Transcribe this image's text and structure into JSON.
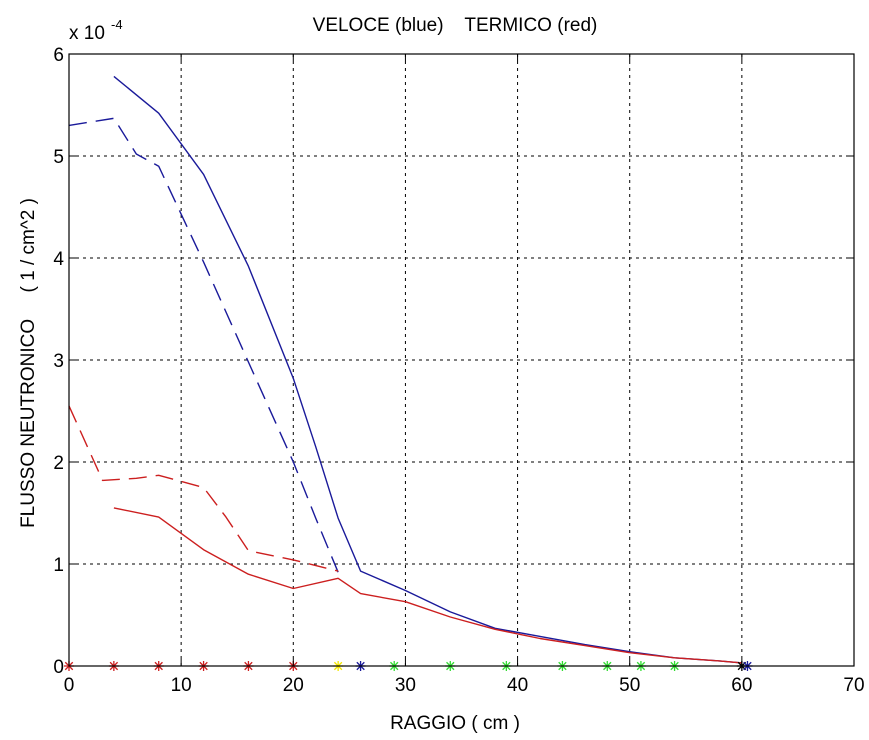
{
  "chart_data": {
    "type": "line",
    "title": "VELOCE (blue)    TERMICO (red)",
    "xlabel": "RAGGIO ( cm )",
    "ylabel": "FLUSSO NEUTRONICO     ( 1 / cm^2 )",
    "y_exponent_prefix": "x 10",
    "y_exponent_power": "-4",
    "xlim": [
      0,
      70
    ],
    "ylim": [
      0,
      6
    ],
    "x_ticks": [
      0,
      10,
      20,
      30,
      40,
      50,
      60,
      70
    ],
    "x_tick_labels": [
      "0",
      "10",
      "20",
      "30",
      "40",
      "50",
      "60",
      "70"
    ],
    "y_ticks": [
      0,
      1,
      2,
      3,
      4,
      5,
      6
    ],
    "y_tick_labels": [
      "0",
      "1",
      "2",
      "3",
      "4",
      "5",
      "6"
    ],
    "grid": true,
    "colors": {
      "blue": "#1a1a9a",
      "red": "#cc1f1f",
      "yellow": "#f2e600",
      "green": "#33dd33",
      "black": "#000000"
    },
    "series": [
      {
        "color": "blue",
        "style": "solid",
        "x": [
          4,
          8,
          12,
          16,
          20,
          22,
          24,
          26,
          30,
          34,
          38,
          42,
          46,
          50,
          54,
          58,
          60
        ],
        "y": [
          5.78,
          5.42,
          4.82,
          3.92,
          2.82,
          2.15,
          1.45,
          0.93,
          0.74,
          0.53,
          0.37,
          0.29,
          0.21,
          0.14,
          0.08,
          0.05,
          0.03
        ]
      },
      {
        "color": "blue",
        "style": "dashed",
        "x": [
          0,
          4,
          6,
          8,
          12,
          16,
          20,
          22,
          24
        ],
        "y": [
          5.3,
          5.37,
          5.02,
          4.9,
          3.96,
          2.98,
          2.0,
          1.45,
          0.92
        ]
      },
      {
        "color": "red",
        "style": "solid",
        "x": [
          4,
          8,
          12,
          16,
          20,
          24,
          26,
          30,
          34,
          38,
          42,
          46,
          50,
          54,
          58,
          60
        ],
        "y": [
          1.55,
          1.46,
          1.14,
          0.9,
          0.76,
          0.86,
          0.71,
          0.63,
          0.48,
          0.36,
          0.27,
          0.2,
          0.13,
          0.08,
          0.05,
          0.03
        ]
      },
      {
        "color": "red",
        "style": "dashed",
        "x": [
          0,
          3,
          6,
          8,
          12,
          14,
          16,
          20,
          24
        ],
        "y": [
          2.55,
          1.82,
          1.84,
          1.87,
          1.75,
          1.46,
          1.13,
          1.04,
          0.93
        ]
      }
    ],
    "markers": {
      "symbol": "*",
      "y": 0,
      "points": [
        {
          "x": 0,
          "color": "red"
        },
        {
          "x": 4,
          "color": "red"
        },
        {
          "x": 8,
          "color": "red"
        },
        {
          "x": 12,
          "color": "red"
        },
        {
          "x": 16,
          "color": "red"
        },
        {
          "x": 20,
          "color": "red"
        },
        {
          "x": 24,
          "color": "yellow"
        },
        {
          "x": 26,
          "color": "blue"
        },
        {
          "x": 29,
          "color": "green"
        },
        {
          "x": 34,
          "color": "green"
        },
        {
          "x": 39,
          "color": "green"
        },
        {
          "x": 44,
          "color": "green"
        },
        {
          "x": 48,
          "color": "green"
        },
        {
          "x": 51,
          "color": "green"
        },
        {
          "x": 54,
          "color": "green"
        },
        {
          "x": 60,
          "color": "black"
        },
        {
          "x": 60.5,
          "color": "blue"
        }
      ]
    }
  }
}
